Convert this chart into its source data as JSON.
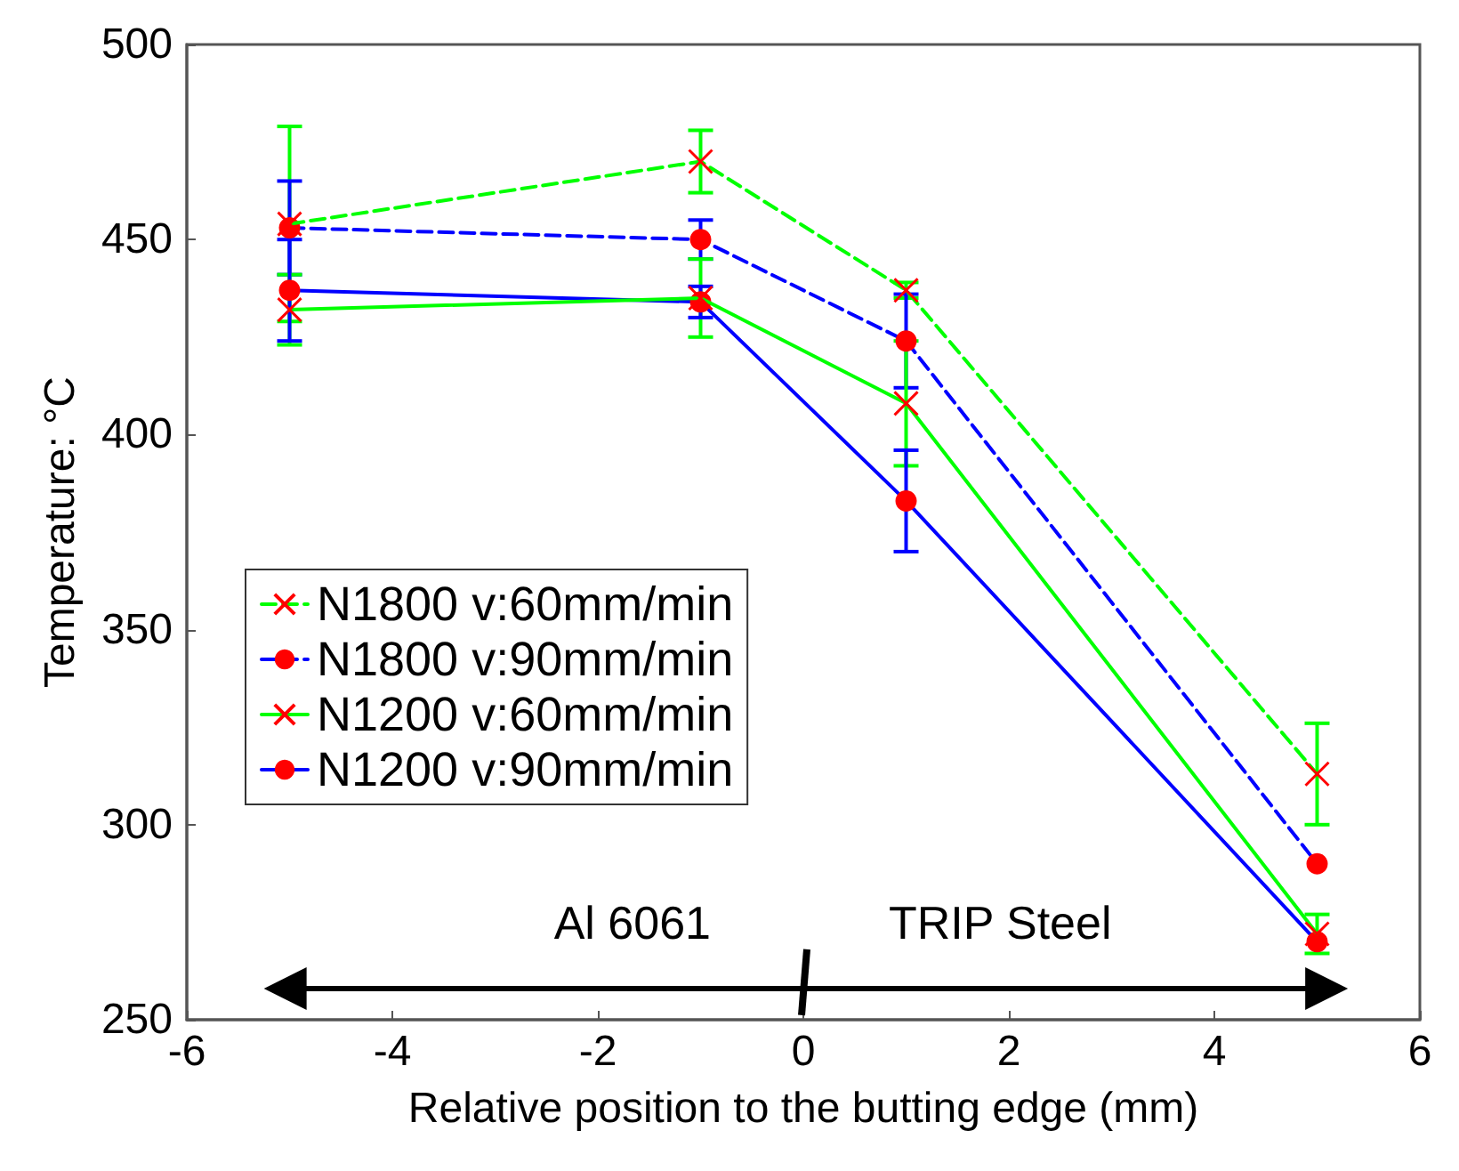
{
  "chart_data": {
    "type": "line",
    "xlabel": "Relative position to the butting edge (mm)",
    "ylabel": "Temperature: °C",
    "x": [
      -5,
      -1,
      1,
      5
    ],
    "xlim": [
      -6,
      6
    ],
    "xticks": [
      -6,
      -4,
      -2,
      0,
      2,
      4,
      6
    ],
    "ylim": [
      250,
      500
    ],
    "yticks": [
      250,
      300,
      350,
      400,
      450,
      500
    ],
    "grid": false,
    "legend": "left",
    "annotations": [
      "Al 6061",
      "TRIP Steel"
    ],
    "series": [
      {
        "name": "N1800 v:60mm/min",
        "color": "#00ff00",
        "line_style": "dashed",
        "marker": "cross",
        "values": [
          454,
          470,
          437,
          313
        ],
        "errors": [
          25,
          8,
          2,
          13
        ]
      },
      {
        "name": "N1800 v:90mm/min",
        "color": "#0000ff",
        "line_style": "dashed",
        "marker": "circle",
        "values": [
          453,
          450,
          424,
          290
        ],
        "errors": [
          12,
          5,
          12,
          null
        ]
      },
      {
        "name": "N1200 v:60mm/min",
        "color": "#00ff00",
        "line_style": "solid",
        "marker": "cross",
        "values": [
          432,
          435,
          408,
          272
        ],
        "errors": [
          9,
          10,
          16,
          5
        ]
      },
      {
        "name": "N1200 v:90mm/min",
        "color": "#0000ff",
        "line_style": "solid",
        "marker": "circle",
        "values": [
          437,
          434,
          383,
          270
        ],
        "errors": [
          13,
          4,
          13,
          null
        ]
      }
    ]
  }
}
